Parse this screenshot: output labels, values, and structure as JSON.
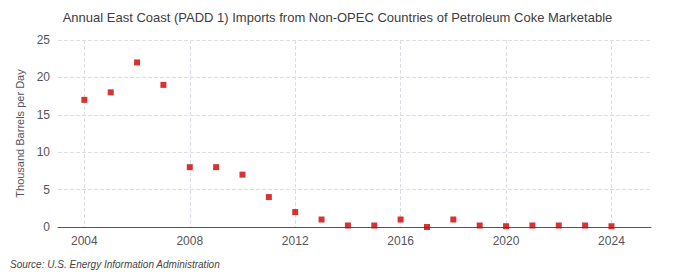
{
  "chart_data": {
    "type": "scatter",
    "title": "Annual East Coast (PADD 1) Imports from Non-OPEC Countries of Petroleum Coke Marketable",
    "ylabel": "Thousand Barrels per Day",
    "source": "Source: U.S. Energy Information Administration",
    "x": [
      2004,
      2005,
      2006,
      2007,
      2008,
      2009,
      2010,
      2011,
      2012,
      2013,
      2014,
      2015,
      2016,
      2017,
      2018,
      2019,
      2020,
      2021,
      2022,
      2023,
      2024
    ],
    "values": [
      17,
      18,
      22,
      19,
      8,
      8,
      7,
      4,
      2,
      1,
      0.2,
      0.2,
      1,
      0,
      1,
      0.2,
      0.1,
      0.2,
      0.2,
      0.2,
      0.1
    ],
    "color": "#cc0000",
    "marker": "square",
    "xlim": [
      2003,
      2025.5
    ],
    "xticks": [
      2004,
      2008,
      2012,
      2016,
      2020,
      2024
    ],
    "ylim": [
      0,
      25
    ],
    "yticks": [
      0,
      5,
      10,
      15,
      20,
      25
    ],
    "grid": true
  }
}
